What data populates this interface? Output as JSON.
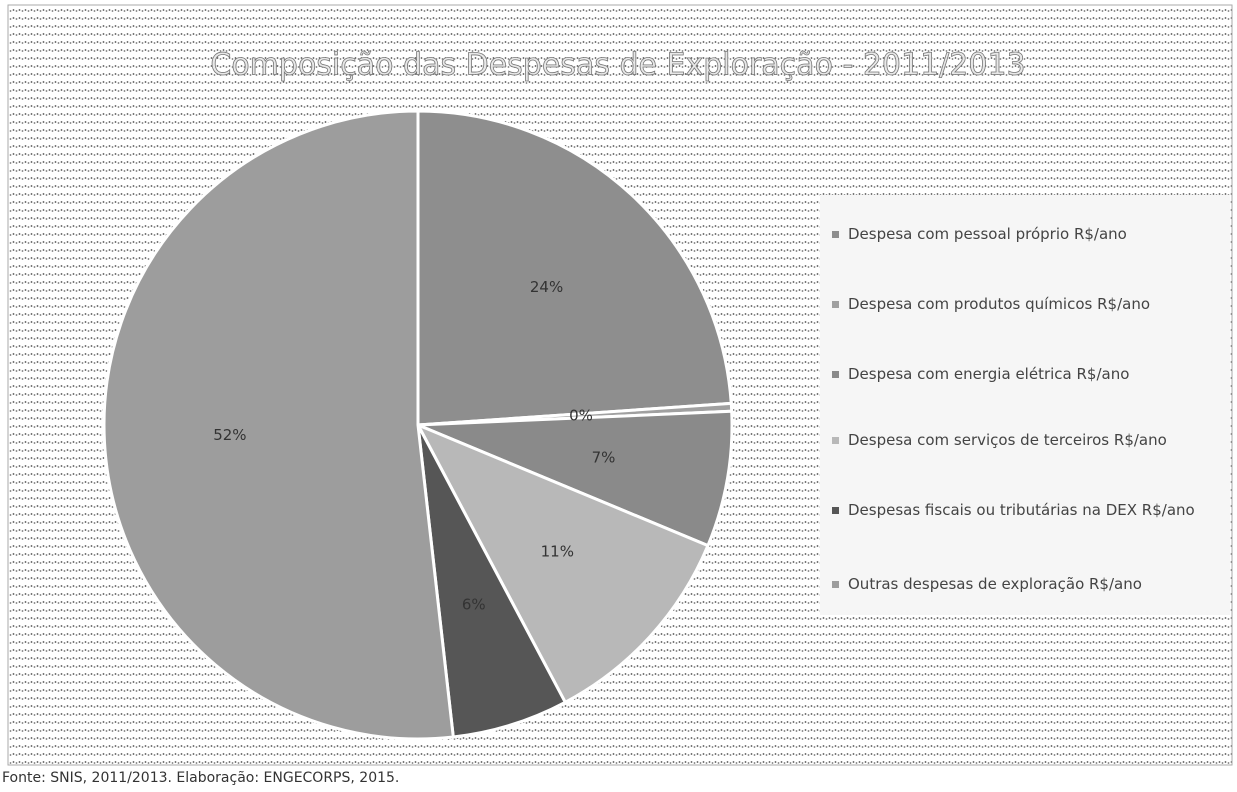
{
  "chart_data": {
    "type": "pie",
    "title": "Composição das Despesas de Exploração - 2011/2013",
    "categories": [
      "Despesa com pessoal próprio R$/ano",
      "Despesa com produtos químicos R$/ano",
      "Despesa com energia elétrica R$/ano",
      "Despesa com serviços de terceiros R$/ano",
      "Despesas fiscais ou tributárias na DEX R$/ano",
      "Outras despesas de exploração R$/ano"
    ],
    "values": [
      24,
      0.4,
      7,
      11,
      6,
      52
    ],
    "value_labels": [
      "24%",
      "0%",
      "7%",
      "11%",
      "6%",
      "52%"
    ],
    "colors": [
      "#8e8e8e",
      "#a0a0a0",
      "#8a8a8a",
      "#b8b8b8",
      "#565656",
      "#9d9d9d"
    ],
    "legend": "right",
    "source": "Fonte: SNIS, 2011/2013. Elaboração: ENGECORPS, 2015."
  }
}
